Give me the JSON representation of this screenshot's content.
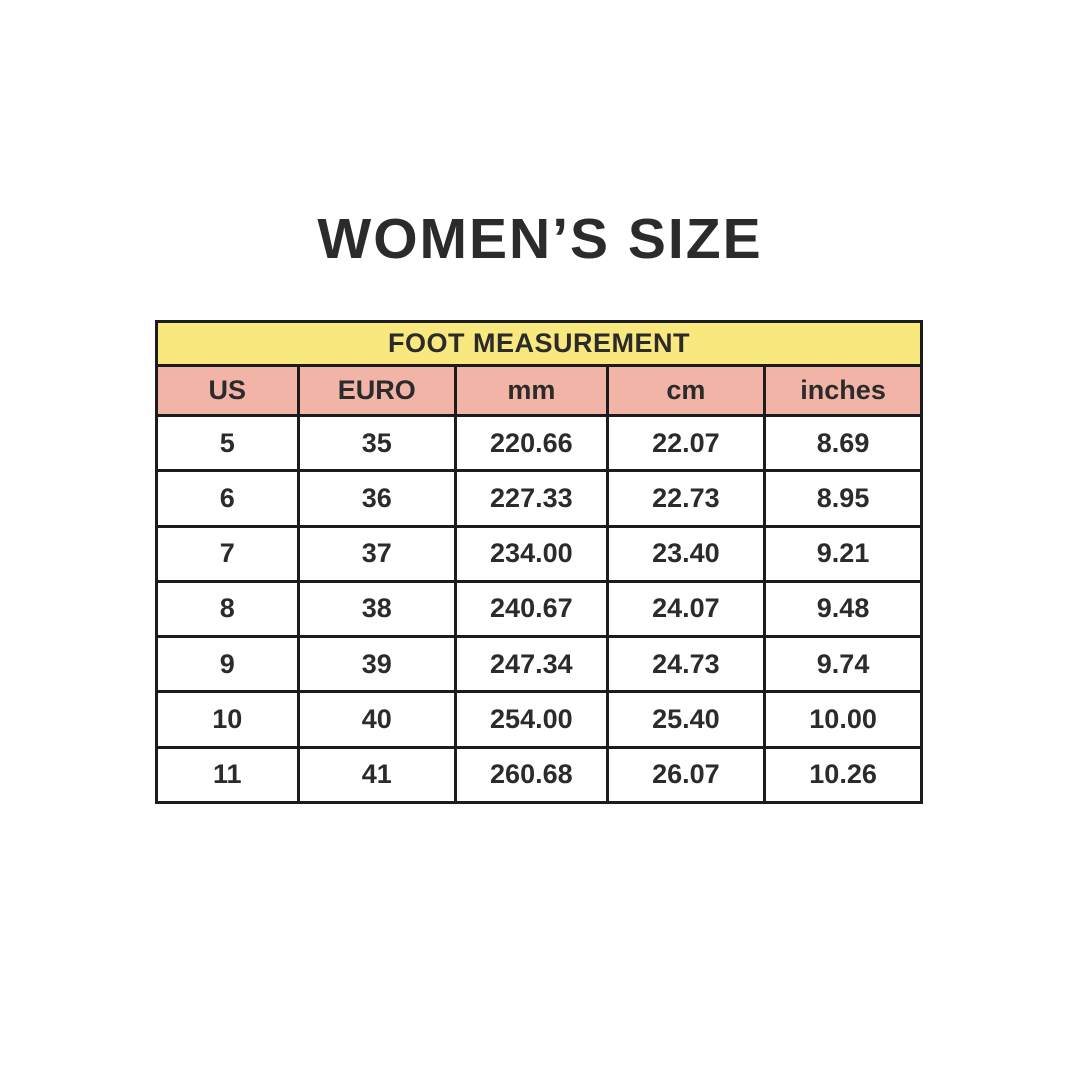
{
  "page": {
    "title": "WOMEN’S SIZE",
    "background": "#ffffff"
  },
  "colors": {
    "banner_bg": "#f9e87d",
    "header_bg": "#f2b4a6",
    "border": "#1c1c1c",
    "text": "#2b2b2b"
  },
  "chart_data": {
    "type": "table",
    "title": "WOMEN’S SIZE",
    "banner": "FOOT MEASUREMENT",
    "columns": [
      "US",
      "EURO",
      "mm",
      "cm",
      "inches"
    ],
    "rows": [
      [
        "5",
        "35",
        "220.66",
        "22.07",
        "8.69"
      ],
      [
        "6",
        "36",
        "227.33",
        "22.73",
        "8.95"
      ],
      [
        "7",
        "37",
        "234.00",
        "23.40",
        "9.21"
      ],
      [
        "8",
        "38",
        "240.67",
        "24.07",
        "9.48"
      ],
      [
        "9",
        "39",
        "247.34",
        "24.73",
        "9.74"
      ],
      [
        "10",
        "40",
        "254.00",
        "25.40",
        "10.00"
      ],
      [
        "11",
        "41",
        "260.68",
        "26.07",
        "10.26"
      ]
    ]
  }
}
